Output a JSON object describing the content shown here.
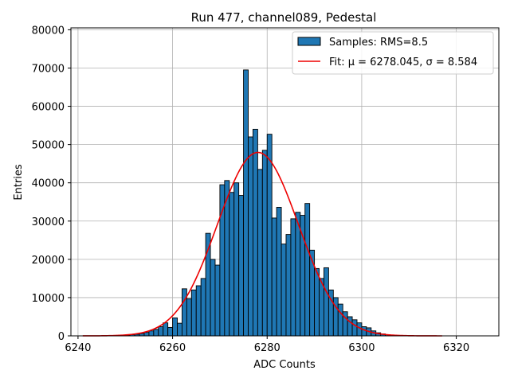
{
  "chart_data": {
    "type": "bar",
    "title": "Run 477, channel089, Pedestal",
    "xlabel": "ADC Counts",
    "ylabel": "Entries",
    "xlim": [
      6238.5,
      6329
    ],
    "ylim": [
      0,
      80500
    ],
    "xticks": [
      6240,
      6260,
      6280,
      6300,
      6320
    ],
    "yticks": [
      0,
      10000,
      20000,
      30000,
      40000,
      50000,
      60000,
      70000,
      80000
    ],
    "grid": true,
    "legend_position": "top-right",
    "legend": [
      {
        "label": "Samples: RMS=8.5",
        "kind": "patch"
      },
      {
        "label": "Fit: μ = 6278.045, σ = 8.584",
        "kind": "line"
      }
    ],
    "histogram": {
      "name": "Samples: RMS=8.5",
      "bin_width": 1,
      "x_start": [
        6249,
        6250,
        6251,
        6252,
        6253,
        6254,
        6255,
        6256,
        6257,
        6258,
        6259,
        6260,
        6261,
        6262,
        6263,
        6264,
        6265,
        6266,
        6267,
        6268,
        6269,
        6270,
        6271,
        6272,
        6273,
        6274,
        6275,
        6276,
        6277,
        6278,
        6279,
        6280,
        6281,
        6282,
        6283,
        6284,
        6285,
        6286,
        6287,
        6288,
        6289,
        6290,
        6291,
        6292,
        6293,
        6294,
        6295,
        6296,
        6297,
        6298,
        6299,
        6300,
        6301,
        6302,
        6303,
        6304,
        6305
      ],
      "values": [
        150,
        200,
        300,
        400,
        600,
        900,
        1300,
        1700,
        2400,
        3400,
        2200,
        4700,
        3300,
        12300,
        9700,
        12000,
        13100,
        15000,
        26800,
        20000,
        18500,
        39500,
        40600,
        37500,
        40000,
        36700,
        69500,
        52000,
        54000,
        43500,
        48500,
        52700,
        30800,
        33600,
        24000,
        26500,
        30600,
        32300,
        31500,
        34600,
        22400,
        17600,
        15000,
        17800,
        12000,
        10000,
        8300,
        6300,
        5000,
        4200,
        3400,
        2400,
        2100,
        1300,
        800,
        500,
        300
      ]
    },
    "fit": {
      "name": "Fit: μ = 6278.045, σ = 8.584",
      "mu": 6278.045,
      "sigma": 8.584,
      "amplitude": 47950,
      "x_range": [
        6241,
        6317
      ],
      "color": "#ee0000"
    },
    "colors": {
      "bar_fill": "#1f77b4",
      "bar_edge": "#000000",
      "grid": "#b0b0b0"
    }
  }
}
